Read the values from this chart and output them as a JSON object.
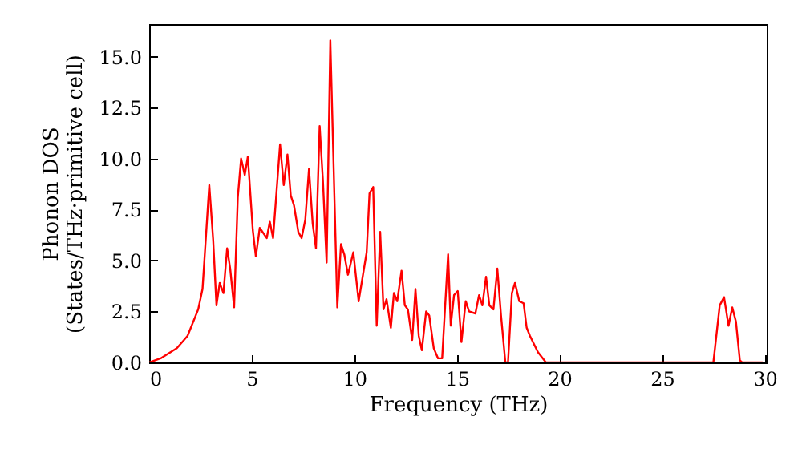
{
  "chart_data": {
    "type": "line",
    "xlabel": "Frequency (THz)",
    "ylabel": "Phonon DOS\n(States/THz·primitive cell)",
    "x": [
      0,
      0.56,
      1.35,
      1.87,
      2.39,
      2.6,
      2.93,
      3.12,
      3.28,
      3.44,
      3.62,
      3.8,
      3.95,
      4.14,
      4.32,
      4.48,
      4.66,
      4.81,
      5.05,
      5.2,
      5.39,
      5.73,
      5.88,
      6.04,
      6.38,
      6.56,
      6.74,
      6.9,
      7.06,
      7.27,
      7.43,
      7.61,
      7.79,
      7.97,
      8.13,
      8.31,
      8.47,
      8.65,
      8.83,
      9.17,
      9.35,
      9.51,
      9.69,
      9.95,
      10.21,
      10.6,
      10.74,
      10.92,
      11.09,
      11.26,
      11.42,
      11.57,
      11.78,
      11.93,
      12.09,
      12.3,
      12.46,
      12.61,
      12.82,
      12.98,
      13.14,
      13.29,
      13.5,
      13.65,
      13.87,
      14.08,
      14.28,
      14.57,
      14.7,
      14.86,
      15.04,
      15.22,
      15.43,
      15.59,
      15.9,
      16.08,
      16.24,
      16.42,
      16.58,
      16.78,
      16.97,
      17.15,
      17.36,
      17.49,
      17.68,
      17.83,
      18.04,
      18.25,
      18.4,
      18.56,
      18.95,
      19.34,
      27.5,
      27.81,
      28.02,
      28.24,
      28.42,
      28.6,
      28.79,
      28.9,
      29.9
    ],
    "series": [
      {
        "color": "#ff0000",
        "values": [
          0,
          0.2,
          0.7,
          1.3,
          2.6,
          3.6,
          8.7,
          6.0,
          2.8,
          3.9,
          3.4,
          5.6,
          4.6,
          2.7,
          8.1,
          10.0,
          9.2,
          10.1,
          6.5,
          5.2,
          6.6,
          6.1,
          6.9,
          6.1,
          10.7,
          8.7,
          10.2,
          8.2,
          7.7,
          6.4,
          6.1,
          7.0,
          9.5,
          6.8,
          5.6,
          11.6,
          8.9,
          4.9,
          15.8,
          2.7,
          5.8,
          5.3,
          4.3,
          5.4,
          3.0,
          5.4,
          8.3,
          8.6,
          1.8,
          6.4,
          2.6,
          3.1,
          1.7,
          3.4,
          3.0,
          4.5,
          2.8,
          2.6,
          1.1,
          3.6,
          1.3,
          0.6,
          2.5,
          2.3,
          0.7,
          0.2,
          0.2,
          5.3,
          1.8,
          3.3,
          3.5,
          1.0,
          3.0,
          2.5,
          2.4,
          3.3,
          2.8,
          4.2,
          2.8,
          2.6,
          4.6,
          2.3,
          0,
          0,
          3.4,
          3.9,
          3.0,
          2.9,
          1.7,
          1.3,
          0.5,
          0,
          0,
          2.8,
          3.2,
          1.8,
          2.7,
          2.0,
          0.1,
          0,
          0
        ]
      }
    ],
    "xlim": [
      0,
      30.1
    ],
    "ylim": [
      0,
      16.6
    ],
    "xticks": [
      0,
      5,
      10,
      15,
      20,
      25,
      30
    ],
    "yticks": [
      {
        "value": 0,
        "label": "0.0"
      },
      {
        "value": 2.5,
        "label": "2.5"
      },
      {
        "value": 5,
        "label": "5.0"
      },
      {
        "value": 7.5,
        "label": "7.5"
      },
      {
        "value": 10,
        "label": "10.0"
      },
      {
        "value": 12.5,
        "label": "12.5"
      },
      {
        "value": 15,
        "label": "15.0"
      }
    ],
    "grid": false,
    "marker": "none",
    "line_style": "solid"
  }
}
